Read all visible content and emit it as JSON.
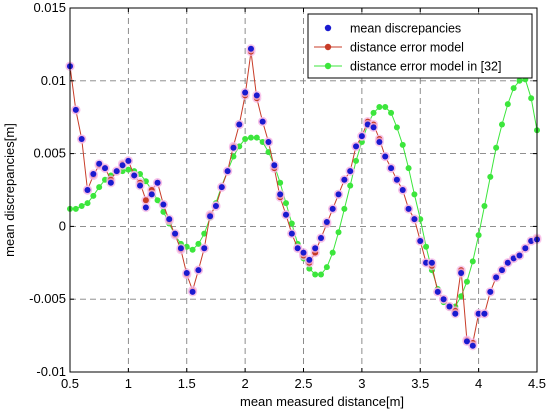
{
  "chart_data": {
    "type": "line",
    "xlabel": "mean measured distance[m]",
    "ylabel": "mean discrepancies[m]",
    "xlim": [
      0.5,
      4.5
    ],
    "ylim": [
      -0.01,
      0.015
    ],
    "xticks": [
      "0.5",
      "1",
      "1.5",
      "2",
      "2.5",
      "3",
      "3.5",
      "4",
      "4.5"
    ],
    "yticks": [
      "-0.01",
      "-0.005",
      "0",
      "0.005",
      "0.01",
      "0.015"
    ],
    "grid": true,
    "legend_position": "top-right",
    "series": [
      {
        "name": "mean discrepancies",
        "style": "markers",
        "color": "#1a1ad0",
        "x": [
          0.5,
          0.55,
          0.6,
          0.65,
          0.7,
          0.75,
          0.8,
          0.85,
          0.9,
          0.95,
          1.0,
          1.05,
          1.1,
          1.15,
          1.2,
          1.25,
          1.3,
          1.35,
          1.4,
          1.45,
          1.5,
          1.55,
          1.6,
          1.65,
          1.7,
          1.75,
          1.8,
          1.85,
          1.9,
          1.95,
          2.0,
          2.05,
          2.1,
          2.15,
          2.2,
          2.25,
          2.3,
          2.35,
          2.4,
          2.45,
          2.5,
          2.55,
          2.6,
          2.65,
          2.7,
          2.75,
          2.8,
          2.85,
          2.9,
          2.95,
          3.0,
          3.05,
          3.1,
          3.15,
          3.2,
          3.25,
          3.3,
          3.35,
          3.4,
          3.45,
          3.5,
          3.55,
          3.6,
          3.65,
          3.7,
          3.75,
          3.8,
          3.85,
          3.9,
          3.95,
          4.0,
          4.05,
          4.1,
          4.15,
          4.2,
          4.25,
          4.3,
          4.35,
          4.4,
          4.45,
          4.5
        ],
        "y": [
          0.011,
          0.008,
          0.006,
          0.0025,
          0.0036,
          0.0043,
          0.004,
          0.003,
          0.0038,
          0.0042,
          0.0045,
          0.0035,
          0.0028,
          0.0013,
          0.0022,
          0.003,
          0.0015,
          0.0005,
          -0.0005,
          -0.0015,
          -0.0032,
          -0.0045,
          -0.003,
          -0.0015,
          0.0007,
          0.0014,
          0.0027,
          0.0038,
          0.0054,
          0.007,
          0.0092,
          0.0122,
          0.009,
          0.0072,
          0.0058,
          0.0042,
          0.0022,
          0.0008,
          -0.0005,
          -0.0015,
          -0.0018,
          -0.0023,
          -0.0015,
          -0.0008,
          0.0003,
          0.0012,
          0.0022,
          0.0032,
          0.0038,
          0.0055,
          0.0062,
          0.007,
          0.0068,
          0.0058,
          0.0048,
          0.004,
          0.0032,
          0.0025,
          0.0012,
          0.0005,
          -0.001,
          -0.0025,
          -0.0025,
          -0.0045,
          -0.005,
          -0.0055,
          -0.006,
          -0.0032,
          -0.0079,
          -0.0082,
          -0.006,
          -0.006,
          -0.0045,
          -0.0035,
          -0.003,
          -0.0025,
          -0.0022,
          -0.002,
          -0.0015,
          -0.001,
          -0.0009
        ]
      },
      {
        "name": "distance error model",
        "style": "line+markers",
        "color": "#c83c28",
        "x": [
          0.5,
          0.55,
          0.6,
          0.65,
          0.7,
          0.75,
          0.8,
          0.85,
          0.9,
          0.95,
          1.0,
          1.05,
          1.1,
          1.15,
          1.2,
          1.25,
          1.3,
          1.35,
          1.4,
          1.45,
          1.5,
          1.55,
          1.6,
          1.65,
          1.7,
          1.75,
          1.8,
          1.85,
          1.9,
          1.95,
          2.0,
          2.05,
          2.1,
          2.15,
          2.2,
          2.25,
          2.3,
          2.35,
          2.4,
          2.45,
          2.5,
          2.55,
          2.6,
          2.65,
          2.7,
          2.75,
          2.8,
          2.85,
          2.9,
          2.95,
          3.0,
          3.05,
          3.1,
          3.15,
          3.2,
          3.25,
          3.3,
          3.35,
          3.4,
          3.45,
          3.5,
          3.55,
          3.6,
          3.65,
          3.7,
          3.75,
          3.8,
          3.85,
          3.9,
          3.95,
          4.0,
          4.05,
          4.1,
          4.15,
          4.2,
          4.25,
          4.3,
          4.35,
          4.4,
          4.45,
          4.5
        ],
        "y": [
          0.011,
          0.008,
          0.006,
          0.0025,
          0.0035,
          0.0042,
          0.004,
          0.0032,
          0.0038,
          0.0043,
          0.0045,
          0.0035,
          0.003,
          0.0018,
          0.0025,
          0.003,
          0.0015,
          0.0004,
          -0.0006,
          -0.0016,
          -0.0033,
          -0.0044,
          -0.003,
          -0.0015,
          0.0008,
          0.0014,
          0.0027,
          0.0038,
          0.0055,
          0.007,
          0.009,
          0.012,
          0.0088,
          0.0072,
          0.0058,
          0.004,
          0.002,
          0.0008,
          -0.0005,
          -0.0015,
          -0.002,
          -0.0025,
          -0.0018,
          -0.0008,
          0.0002,
          0.0012,
          0.0022,
          0.0032,
          0.0038,
          0.0055,
          0.0062,
          0.0072,
          0.007,
          0.006,
          0.0048,
          0.004,
          0.0032,
          0.0025,
          0.0012,
          0.0005,
          -0.001,
          -0.0025,
          -0.0027,
          -0.0045,
          -0.005,
          -0.0055,
          -0.0058,
          -0.003,
          -0.0078,
          -0.008,
          -0.006,
          -0.006,
          -0.0045,
          -0.0035,
          -0.003,
          -0.0025,
          -0.0022,
          -0.002,
          -0.0015,
          -0.001,
          -0.0008
        ]
      },
      {
        "name": "distance error model in [32]",
        "style": "line+markers",
        "color": "#3ce63c",
        "x": [
          0.5,
          0.55,
          0.6,
          0.65,
          0.7,
          0.75,
          0.8,
          0.85,
          0.9,
          0.95,
          1.0,
          1.05,
          1.1,
          1.15,
          1.2,
          1.25,
          1.3,
          1.35,
          1.4,
          1.45,
          1.5,
          1.55,
          1.6,
          1.65,
          1.7,
          1.75,
          1.8,
          1.85,
          1.9,
          1.95,
          2.0,
          2.05,
          2.1,
          2.15,
          2.2,
          2.25,
          2.3,
          2.35,
          2.4,
          2.45,
          2.5,
          2.55,
          2.6,
          2.65,
          2.7,
          2.75,
          2.8,
          2.85,
          2.9,
          2.95,
          3.0,
          3.05,
          3.1,
          3.15,
          3.2,
          3.25,
          3.3,
          3.35,
          3.4,
          3.45,
          3.5,
          3.55,
          3.6,
          3.65,
          3.7,
          3.75,
          3.8,
          3.85,
          3.9,
          3.95,
          4.0,
          4.05,
          4.1,
          4.15,
          4.2,
          4.25,
          4.3,
          4.35,
          4.4,
          4.45,
          4.5
        ],
        "y": [
          0.0012,
          0.0012,
          0.0014,
          0.0016,
          0.0021,
          0.0027,
          0.0032,
          0.0035,
          0.0037,
          0.0038,
          0.0039,
          0.0038,
          0.0036,
          0.0031,
          0.0025,
          0.0018,
          0.001,
          0.0002,
          -0.0006,
          -0.0012,
          -0.0014,
          -0.0016,
          -0.0012,
          -0.0005,
          0.0006,
          0.0016,
          0.0028,
          0.0038,
          0.0048,
          0.0055,
          0.006,
          0.0061,
          0.0061,
          0.0058,
          0.0051,
          0.0042,
          0.003,
          0.0016,
          0.0002,
          -0.0012,
          -0.0022,
          -0.0029,
          -0.0033,
          -0.0033,
          -0.0028,
          -0.0018,
          -0.0004,
          0.0012,
          0.0028,
          0.0045,
          0.0058,
          0.007,
          0.0078,
          0.0082,
          0.0082,
          0.0078,
          0.0068,
          0.0056,
          0.004,
          0.0022,
          0.0005,
          -0.0014,
          -0.003,
          -0.0043,
          -0.0052,
          -0.0056,
          -0.0055,
          -0.0048,
          -0.0038,
          -0.0024,
          -0.0006,
          0.0014,
          0.0034,
          0.0054,
          0.007,
          0.0084,
          0.0095,
          0.01,
          0.0101,
          0.0088,
          0.0066
        ]
      }
    ]
  }
}
